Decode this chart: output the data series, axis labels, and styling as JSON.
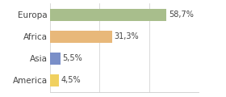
{
  "categories": [
    "Europa",
    "Africa",
    "Asia",
    "America"
  ],
  "values": [
    58.7,
    31.3,
    5.5,
    4.5
  ],
  "labels": [
    "58,7%",
    "31,3%",
    "5,5%",
    "4,5%"
  ],
  "bar_colors": [
    "#a8be8c",
    "#e8b87a",
    "#7a8fc8",
    "#f0d060"
  ],
  "background_color": "#ffffff",
  "xlim": [
    0,
    75
  ],
  "bar_height": 0.55,
  "label_fontsize": 7,
  "tick_fontsize": 7.5
}
